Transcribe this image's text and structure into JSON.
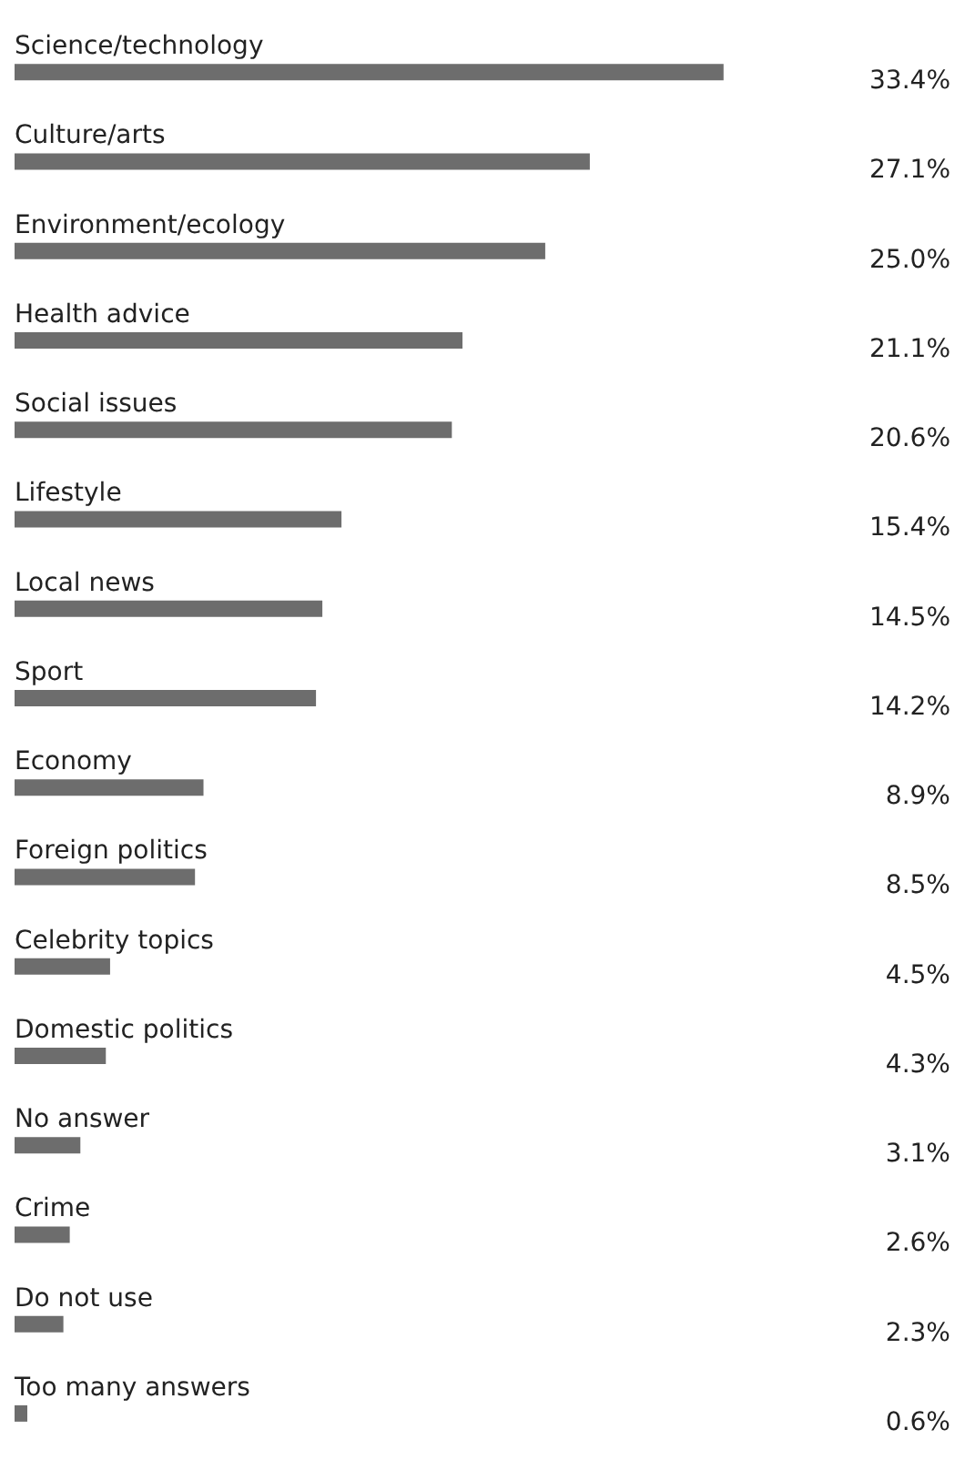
{
  "chart_data": {
    "type": "bar",
    "orientation": "horizontal",
    "categories": [
      "Science/technology",
      "Culture/arts",
      "Environment/ecology",
      "Health advice",
      "Social issues",
      "Lifestyle",
      "Local news",
      "Sport",
      "Economy",
      "Foreign politics",
      "Celebrity topics",
      "Domestic politics",
      "No answer",
      "Crime",
      "Do not use",
      "Too many answers"
    ],
    "values": [
      33.4,
      27.1,
      25.0,
      21.1,
      20.6,
      15.4,
      14.5,
      14.2,
      8.9,
      8.5,
      4.5,
      4.3,
      3.1,
      2.6,
      2.3,
      0.6
    ],
    "value_labels": [
      "33.4%",
      "27.1%",
      "25.0%",
      "21.1%",
      "20.6%",
      "15.4%",
      "14.5%",
      "14.2%",
      "8.9%",
      "8.5%",
      "4.5%",
      "4.3%",
      "3.1%",
      "2.6%",
      "2.3%",
      "0.6%"
    ],
    "color": "#6d6d6d",
    "tick_labels": false,
    "grid": false
  }
}
